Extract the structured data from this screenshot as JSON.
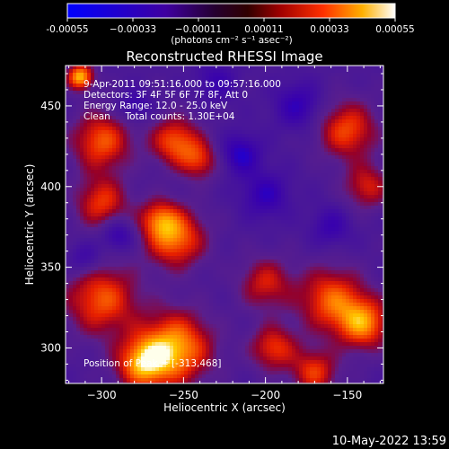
{
  "chart_data": {
    "type": "heatmap",
    "title": "Reconstructed RHESSI Image",
    "xlabel": "Heliocentric X (arcsec)",
    "ylabel": "Heliocentric Y (arcsec)",
    "xlim": [
      -322,
      -128
    ],
    "ylim": [
      278,
      475
    ],
    "x_ticks": [
      -300,
      -250,
      -200,
      -150
    ],
    "y_ticks": [
      300,
      350,
      400,
      450
    ],
    "colorbar": {
      "range": [
        -0.00055,
        0.00055
      ],
      "ticks": [
        -0.00055,
        -0.00033,
        -0.00011,
        0.00011,
        0.00033,
        0.00055
      ],
      "tick_labels": [
        "-0.00055",
        "−0.00033",
        "−0.00011",
        "0.00011",
        "0.00033",
        "0.00055"
      ],
      "units": "(photons cm⁻² s⁻¹ asec⁻²)"
    },
    "annotations": {
      "time": "9-Apr-2011 09:51:16.000 to 09:57:16.000",
      "detectors": "Detectors: 3F 4F 5F 6F 7F 8F, Att 0",
      "energy": "Energy Range: 12.0 - 25.0 keV",
      "clean": "Clean     Total counts: 1.30E+04",
      "peak": "Position of Peak = [-313,468]"
    },
    "peak": [
      -313,
      468
    ],
    "blobs": [
      {
        "x": -313,
        "y": 468,
        "r": 8,
        "v": 0.00055
      },
      {
        "x": -300,
        "y": 428,
        "r": 18,
        "v": 0.0004
      },
      {
        "x": -255,
        "y": 428,
        "r": 15,
        "v": 0.0004
      },
      {
        "x": -240,
        "y": 416,
        "r": 12,
        "v": 0.0003
      },
      {
        "x": -300,
        "y": 390,
        "r": 16,
        "v": 0.00035
      },
      {
        "x": -265,
        "y": 380,
        "r": 12,
        "v": 0.0003
      },
      {
        "x": -255,
        "y": 368,
        "r": 18,
        "v": 0.00045
      },
      {
        "x": -150,
        "y": 435,
        "r": 18,
        "v": 0.00038
      },
      {
        "x": -138,
        "y": 400,
        "r": 14,
        "v": 0.0003
      },
      {
        "x": -200,
        "y": 340,
        "r": 16,
        "v": 0.0003
      },
      {
        "x": -160,
        "y": 330,
        "r": 20,
        "v": 0.0004
      },
      {
        "x": -140,
        "y": 315,
        "r": 16,
        "v": 0.00045
      },
      {
        "x": -195,
        "y": 300,
        "r": 14,
        "v": 0.00035
      },
      {
        "x": -300,
        "y": 330,
        "r": 22,
        "v": 0.0004
      },
      {
        "x": -255,
        "y": 300,
        "r": 22,
        "v": 0.00052
      },
      {
        "x": -275,
        "y": 290,
        "r": 16,
        "v": 0.00045
      },
      {
        "x": -170,
        "y": 285,
        "r": 14,
        "v": 0.00035
      },
      {
        "x": -290,
        "y": 370,
        "r": 10,
        "v": -0.00025
      },
      {
        "x": -215,
        "y": 420,
        "r": 12,
        "v": -0.0003
      },
      {
        "x": -200,
        "y": 395,
        "r": 14,
        "v": -0.00025
      },
      {
        "x": -180,
        "y": 450,
        "r": 14,
        "v": -0.00025
      },
      {
        "x": -230,
        "y": 465,
        "r": 12,
        "v": -0.0002
      },
      {
        "x": -280,
        "y": 450,
        "r": 10,
        "v": -0.0002
      },
      {
        "x": -160,
        "y": 375,
        "r": 12,
        "v": -0.0002
      },
      {
        "x": -310,
        "y": 355,
        "r": 10,
        "v": -0.0002
      }
    ]
  },
  "footer": {
    "timestamp": "10-May-2022 13:59"
  }
}
